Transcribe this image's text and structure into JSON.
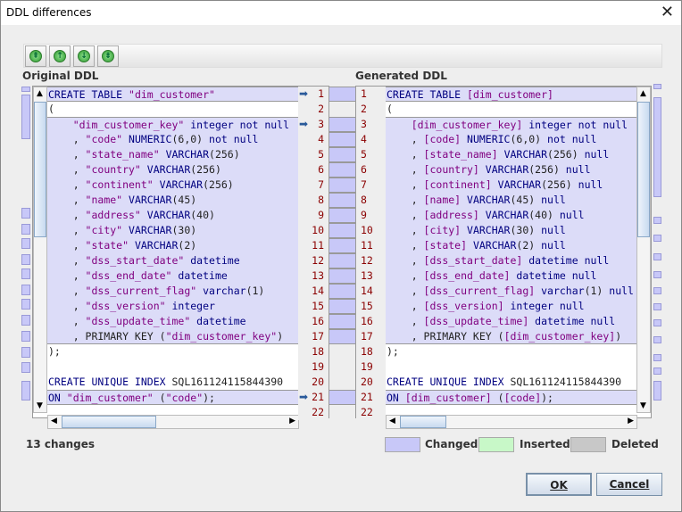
{
  "window": {
    "title": "DDL differences",
    "close_icon": "close-icon"
  },
  "toolbar": [
    {
      "name": "first-change-button",
      "glyph": "⇞"
    },
    {
      "name": "previous-change-button",
      "glyph": "↑"
    },
    {
      "name": "next-change-button",
      "glyph": "↓"
    },
    {
      "name": "last-change-button",
      "glyph": "⇟"
    }
  ],
  "left": {
    "label": "Original DDL",
    "lines": [
      {
        "n": "1",
        "c": true,
        "a": true,
        "t": [
          [
            "k",
            "CREATE TABLE "
          ],
          [
            "s",
            "\"dim_customer\""
          ]
        ]
      },
      {
        "n": "2",
        "c": false,
        "a": false,
        "t": [
          [
            "p",
            "("
          ]
        ]
      },
      {
        "n": "3",
        "c": true,
        "a": true,
        "t": [
          [
            "p",
            "    "
          ],
          [
            "s",
            "\"dim_customer_key\""
          ],
          [
            "k",
            " integer not null"
          ]
        ]
      },
      {
        "n": "4",
        "c": true,
        "a": false,
        "t": [
          [
            "p",
            "    , "
          ],
          [
            "s",
            "\"code\""
          ],
          [
            "k",
            " NUMERIC"
          ],
          [
            "p",
            "(6,0)"
          ],
          [
            "k",
            " not null"
          ]
        ]
      },
      {
        "n": "5",
        "c": true,
        "a": false,
        "t": [
          [
            "p",
            "    , "
          ],
          [
            "s",
            "\"state_name\""
          ],
          [
            "k",
            " VARCHAR"
          ],
          [
            "p",
            "(256)"
          ]
        ]
      },
      {
        "n": "6",
        "c": true,
        "a": false,
        "t": [
          [
            "p",
            "    , "
          ],
          [
            "s",
            "\"country\""
          ],
          [
            "k",
            " VARCHAR"
          ],
          [
            "p",
            "(256)"
          ]
        ]
      },
      {
        "n": "7",
        "c": true,
        "a": false,
        "t": [
          [
            "p",
            "    , "
          ],
          [
            "s",
            "\"continent\""
          ],
          [
            "k",
            " VARCHAR"
          ],
          [
            "p",
            "(256)"
          ]
        ]
      },
      {
        "n": "8",
        "c": true,
        "a": false,
        "t": [
          [
            "p",
            "    , "
          ],
          [
            "s",
            "\"name\""
          ],
          [
            "k",
            " VARCHAR"
          ],
          [
            "p",
            "(45)"
          ]
        ]
      },
      {
        "n": "9",
        "c": true,
        "a": false,
        "t": [
          [
            "p",
            "    , "
          ],
          [
            "s",
            "\"address\""
          ],
          [
            "k",
            " VARCHAR"
          ],
          [
            "p",
            "(40)"
          ]
        ]
      },
      {
        "n": "10",
        "c": true,
        "a": false,
        "t": [
          [
            "p",
            "    , "
          ],
          [
            "s",
            "\"city\""
          ],
          [
            "k",
            " VARCHAR"
          ],
          [
            "p",
            "(30)"
          ]
        ]
      },
      {
        "n": "11",
        "c": true,
        "a": false,
        "t": [
          [
            "p",
            "    , "
          ],
          [
            "s",
            "\"state\""
          ],
          [
            "k",
            " VARCHAR"
          ],
          [
            "p",
            "(2)"
          ]
        ]
      },
      {
        "n": "12",
        "c": true,
        "a": false,
        "t": [
          [
            "p",
            "    , "
          ],
          [
            "s",
            "\"dss_start_date\""
          ],
          [
            "k",
            " datetime"
          ]
        ]
      },
      {
        "n": "13",
        "c": true,
        "a": false,
        "t": [
          [
            "p",
            "    , "
          ],
          [
            "s",
            "\"dss_end_date\""
          ],
          [
            "k",
            " datetime"
          ]
        ]
      },
      {
        "n": "14",
        "c": true,
        "a": false,
        "t": [
          [
            "p",
            "    , "
          ],
          [
            "s",
            "\"dss_current_flag\""
          ],
          [
            "k",
            " varchar"
          ],
          [
            "p",
            "(1)"
          ]
        ]
      },
      {
        "n": "15",
        "c": true,
        "a": false,
        "t": [
          [
            "p",
            "    , "
          ],
          [
            "s",
            "\"dss_version\""
          ],
          [
            "k",
            " integer"
          ]
        ]
      },
      {
        "n": "16",
        "c": true,
        "a": false,
        "t": [
          [
            "p",
            "    , "
          ],
          [
            "s",
            "\"dss_update_time\""
          ],
          [
            "k",
            " datetime"
          ]
        ]
      },
      {
        "n": "17",
        "c": true,
        "a": false,
        "t": [
          [
            "p",
            "    , PRIMARY KEY ("
          ],
          [
            "s",
            "\"dim_customer_key\""
          ],
          [
            "p",
            ")"
          ]
        ]
      },
      {
        "n": "18",
        "c": false,
        "a": false,
        "t": [
          [
            "p",
            ");"
          ]
        ]
      },
      {
        "n": "19",
        "c": false,
        "a": false,
        "t": []
      },
      {
        "n": "20",
        "c": false,
        "a": false,
        "t": [
          [
            "k",
            "CREATE UNIQUE INDEX "
          ],
          [
            "p",
            "SQL161124115844390"
          ]
        ]
      },
      {
        "n": "21",
        "c": true,
        "a": true,
        "t": [
          [
            "k",
            "ON "
          ],
          [
            "s",
            "\"dim_customer\""
          ],
          [
            "p",
            " ("
          ],
          [
            "s",
            "\"code\""
          ],
          [
            "p",
            ");"
          ]
        ]
      },
      {
        "n": "22",
        "c": false,
        "a": false,
        "t": []
      }
    ]
  },
  "right": {
    "label": "Generated DDL",
    "lines": [
      {
        "n": "1",
        "c": true,
        "t": [
          [
            "k",
            "CREATE TABLE "
          ],
          [
            "s",
            "[dim_customer]"
          ]
        ]
      },
      {
        "n": "2",
        "c": false,
        "t": [
          [
            "p",
            "("
          ]
        ]
      },
      {
        "n": "3",
        "c": true,
        "t": [
          [
            "p",
            "    "
          ],
          [
            "s",
            "[dim_customer_key]"
          ],
          [
            "k",
            " integer not null"
          ]
        ]
      },
      {
        "n": "4",
        "c": true,
        "t": [
          [
            "p",
            "    , "
          ],
          [
            "s",
            "[code]"
          ],
          [
            "k",
            " NUMERIC"
          ],
          [
            "p",
            "(6,0)"
          ],
          [
            "k",
            " not null"
          ]
        ]
      },
      {
        "n": "5",
        "c": true,
        "t": [
          [
            "p",
            "    , "
          ],
          [
            "s",
            "[state_name]"
          ],
          [
            "k",
            " VARCHAR"
          ],
          [
            "p",
            "(256)"
          ],
          [
            "k",
            " null"
          ]
        ]
      },
      {
        "n": "6",
        "c": true,
        "t": [
          [
            "p",
            "    , "
          ],
          [
            "s",
            "[country]"
          ],
          [
            "k",
            " VARCHAR"
          ],
          [
            "p",
            "(256)"
          ],
          [
            "k",
            " null"
          ]
        ]
      },
      {
        "n": "7",
        "c": true,
        "t": [
          [
            "p",
            "    , "
          ],
          [
            "s",
            "[continent]"
          ],
          [
            "k",
            " VARCHAR"
          ],
          [
            "p",
            "(256)"
          ],
          [
            "k",
            " null"
          ]
        ]
      },
      {
        "n": "8",
        "c": true,
        "t": [
          [
            "p",
            "    , "
          ],
          [
            "s",
            "[name]"
          ],
          [
            "k",
            " VARCHAR"
          ],
          [
            "p",
            "(45)"
          ],
          [
            "k",
            " null"
          ]
        ]
      },
      {
        "n": "9",
        "c": true,
        "t": [
          [
            "p",
            "    , "
          ],
          [
            "s",
            "[address]"
          ],
          [
            "k",
            " VARCHAR"
          ],
          [
            "p",
            "(40)"
          ],
          [
            "k",
            " null"
          ]
        ]
      },
      {
        "n": "10",
        "c": true,
        "t": [
          [
            "p",
            "    , "
          ],
          [
            "s",
            "[city]"
          ],
          [
            "k",
            " VARCHAR"
          ],
          [
            "p",
            "(30)"
          ],
          [
            "k",
            " null"
          ]
        ]
      },
      {
        "n": "11",
        "c": true,
        "t": [
          [
            "p",
            "    , "
          ],
          [
            "s",
            "[state]"
          ],
          [
            "k",
            " VARCHAR"
          ],
          [
            "p",
            "(2)"
          ],
          [
            "k",
            " null"
          ]
        ]
      },
      {
        "n": "12",
        "c": true,
        "t": [
          [
            "p",
            "    , "
          ],
          [
            "s",
            "[dss_start_date]"
          ],
          [
            "k",
            " datetime null"
          ]
        ]
      },
      {
        "n": "13",
        "c": true,
        "t": [
          [
            "p",
            "    , "
          ],
          [
            "s",
            "[dss_end_date]"
          ],
          [
            "k",
            " datetime null"
          ]
        ]
      },
      {
        "n": "14",
        "c": true,
        "t": [
          [
            "p",
            "    , "
          ],
          [
            "s",
            "[dss_current_flag]"
          ],
          [
            "k",
            " varchar"
          ],
          [
            "p",
            "(1)"
          ],
          [
            "k",
            " null"
          ]
        ]
      },
      {
        "n": "15",
        "c": true,
        "t": [
          [
            "p",
            "    , "
          ],
          [
            "s",
            "[dss_version]"
          ],
          [
            "k",
            " integer null"
          ]
        ]
      },
      {
        "n": "16",
        "c": true,
        "t": [
          [
            "p",
            "    , "
          ],
          [
            "s",
            "[dss_update_time]"
          ],
          [
            "k",
            " datetime null"
          ]
        ]
      },
      {
        "n": "17",
        "c": true,
        "t": [
          [
            "p",
            "    , PRIMARY KEY ("
          ],
          [
            "s",
            "[dim_customer_key]"
          ],
          [
            "p",
            ")"
          ]
        ]
      },
      {
        "n": "18",
        "c": false,
        "t": [
          [
            "p",
            ");"
          ]
        ]
      },
      {
        "n": "19",
        "c": false,
        "t": []
      },
      {
        "n": "20",
        "c": false,
        "t": [
          [
            "k",
            "CREATE UNIQUE INDEX "
          ],
          [
            "p",
            "SQL161124115844390"
          ]
        ]
      },
      {
        "n": "21",
        "c": true,
        "t": [
          [
            "k",
            "ON "
          ],
          [
            "s",
            "[dim_customer]"
          ],
          [
            "p",
            " ("
          ],
          [
            "s",
            "[code]"
          ],
          [
            "p",
            ");"
          ]
        ]
      },
      {
        "n": "22",
        "c": false,
        "t": []
      }
    ]
  },
  "status": {
    "changes": "13 changes"
  },
  "legend": [
    {
      "label": "Changed",
      "color": "#c8c8f8"
    },
    {
      "label": "Inserted",
      "color": "#c8f8c8"
    },
    {
      "label": "Deleted",
      "color": "#c8c8c8"
    }
  ],
  "buttons": {
    "ok": "OK",
    "cancel": "Cancel"
  }
}
